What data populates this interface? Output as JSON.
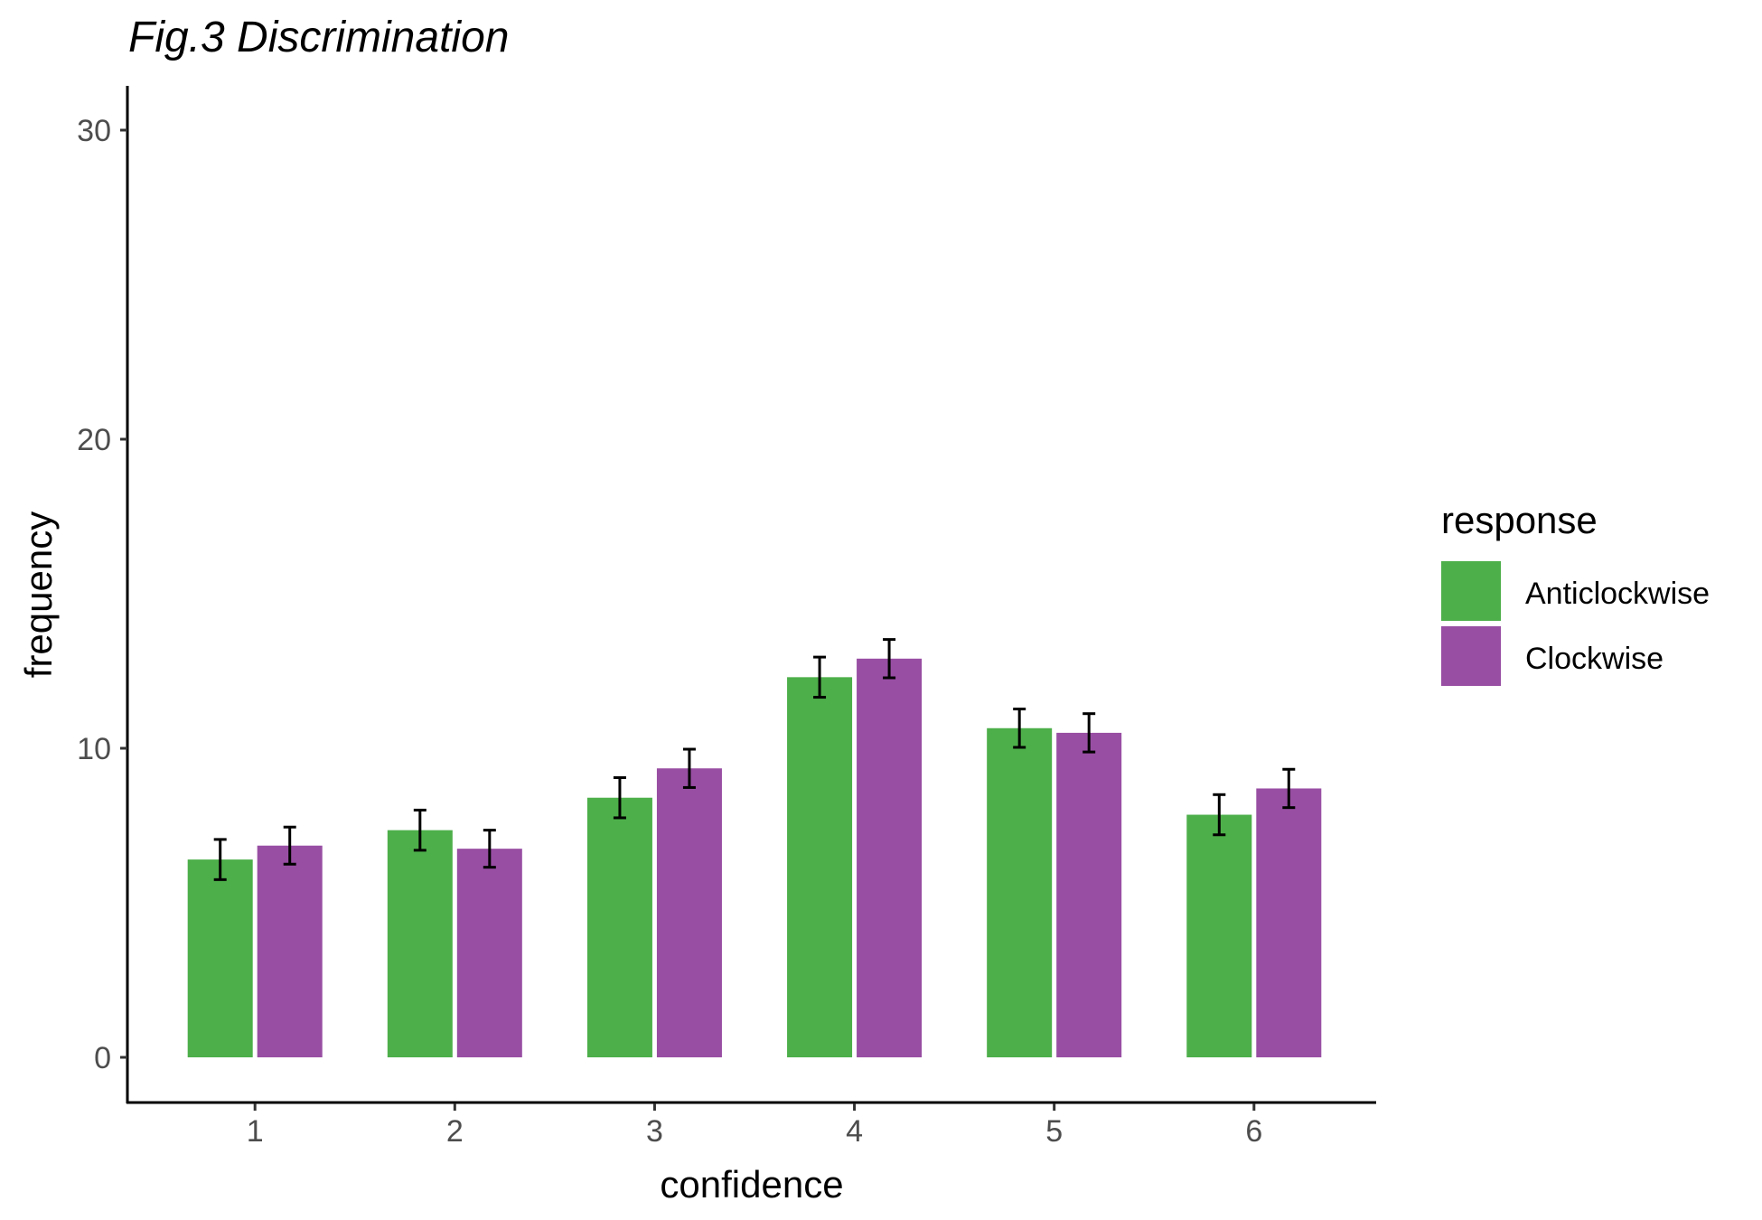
{
  "chart_data": {
    "type": "bar",
    "title": "Fig.3 Discrimination",
    "xlabel": "confidence",
    "ylabel": "frequency",
    "categories": [
      "1",
      "2",
      "3",
      "4",
      "5",
      "6"
    ],
    "ylim": [
      -1.5,
      31.5
    ],
    "yticks": [
      0,
      10,
      20,
      30
    ],
    "grid": false,
    "legend": {
      "title": "response",
      "placement": "right"
    },
    "series": [
      {
        "name": "Anticlockwise",
        "color": "#4daf4a",
        "values": [
          6.4,
          7.35,
          8.4,
          12.3,
          10.65,
          7.85
        ],
        "error": [
          0.65,
          0.65,
          0.65,
          0.65,
          0.62,
          0.65
        ]
      },
      {
        "name": "Clockwise",
        "color": "#984ea3",
        "values": [
          6.85,
          6.75,
          9.35,
          12.9,
          10.5,
          8.7
        ],
        "error": [
          0.6,
          0.6,
          0.62,
          0.62,
          0.62,
          0.62
        ]
      }
    ]
  }
}
